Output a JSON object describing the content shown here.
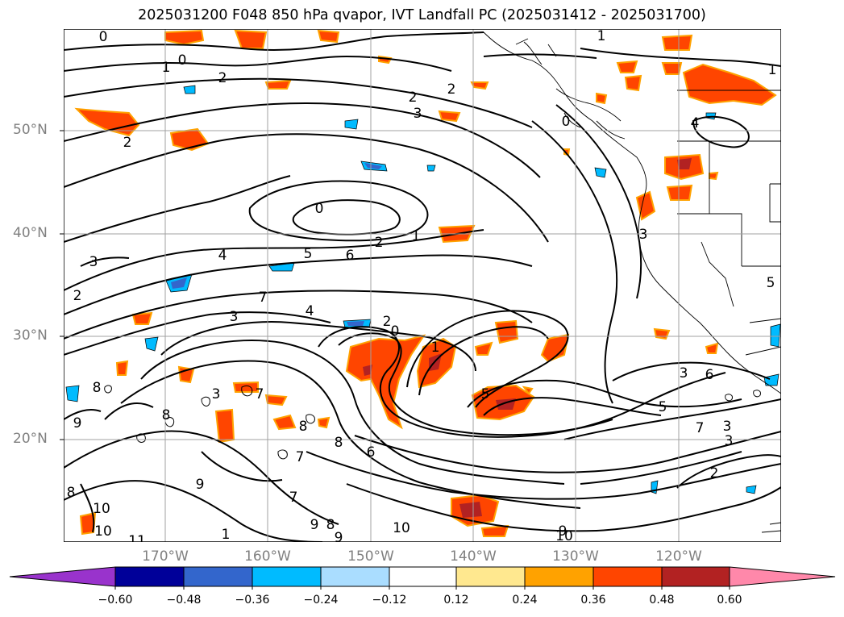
{
  "title": "2025031200 F048 850 hPa qvapor, IVT Landfall PC (2025031412 - 2025031700)",
  "latitude_labels": [
    "50°N",
    "40°N",
    "30°N",
    "20°N"
  ],
  "longitude_labels": [
    "170°W",
    "160°W",
    "150°W",
    "140°W",
    "130°W",
    "120°W"
  ],
  "colorbar": {
    "colors": [
      "#9933cc",
      "#000099",
      "#3366cc",
      "#00bbff",
      "#aaddff",
      "#ffffff",
      "#ffe88f",
      "#ffa200",
      "#ff4500",
      "#b22222",
      "#ff88aa"
    ],
    "tick_labels": [
      "−0.60",
      "−0.48",
      "−0.36",
      "−0.24",
      "−0.12",
      "0.12",
      "0.24",
      "0.36",
      "0.48",
      "0.60"
    ],
    "extend": "both"
  },
  "contour_labels": [
    "0",
    "1",
    "2",
    "3",
    "4",
    "5",
    "6",
    "7",
    "8",
    "9",
    "10",
    "11"
  ]
}
